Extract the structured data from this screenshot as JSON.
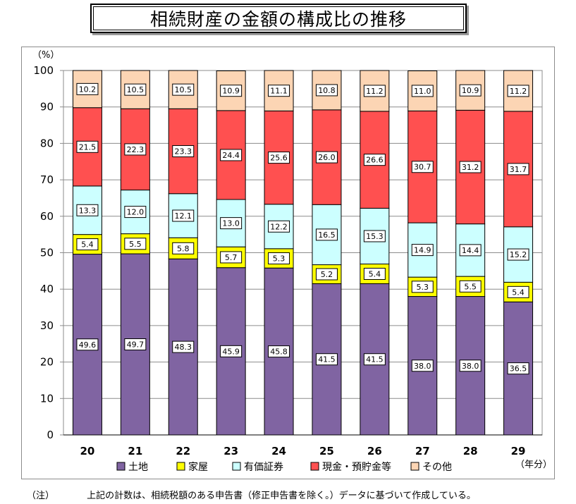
{
  "title": "相続財産の金額の構成比の推移",
  "note": {
    "mark": "（注）",
    "text": "上記の計数は、相続税額のある申告書（修正申告書を除く。）データに基づいて作成している。"
  },
  "chart_data": {
    "type": "bar",
    "stacked": true,
    "unit_label": "（%）",
    "x_unit_label": "（年分）",
    "categories": [
      "20",
      "21",
      "22",
      "23",
      "24",
      "25",
      "26",
      "27",
      "28",
      "29"
    ],
    "ylim": [
      0,
      100
    ],
    "yticks": [
      0,
      10,
      20,
      30,
      40,
      50,
      60,
      70,
      80,
      90,
      100
    ],
    "grid": true,
    "legend_position": "bottom",
    "series": [
      {
        "name": "土地",
        "color": "#8064a2",
        "label_border": "#000000",
        "values": [
          49.6,
          49.7,
          48.3,
          45.9,
          45.8,
          41.5,
          41.5,
          38.0,
          38.0,
          36.5
        ]
      },
      {
        "name": "家屋",
        "color": "#ffff00",
        "label_border": "#000000",
        "values": [
          5.4,
          5.5,
          5.8,
          5.7,
          5.3,
          5.2,
          5.4,
          5.3,
          5.5,
          5.4
        ]
      },
      {
        "name": "有価証券",
        "color": "#ccffff",
        "label_border": "#000000",
        "values": [
          13.3,
          12.0,
          12.1,
          13.0,
          12.2,
          16.5,
          15.3,
          14.9,
          14.4,
          15.2
        ]
      },
      {
        "name": "現金・預貯金等",
        "color": "#ff5050",
        "label_border": "#000000",
        "values": [
          21.5,
          22.3,
          23.3,
          24.4,
          25.6,
          26.0,
          26.6,
          30.7,
          31.2,
          31.7
        ]
      },
      {
        "name": "その他",
        "color": "#fcd5b4",
        "label_border": "#000000",
        "values": [
          10.2,
          10.5,
          10.5,
          10.9,
          11.1,
          10.8,
          11.2,
          11.0,
          10.9,
          11.2
        ]
      }
    ]
  }
}
